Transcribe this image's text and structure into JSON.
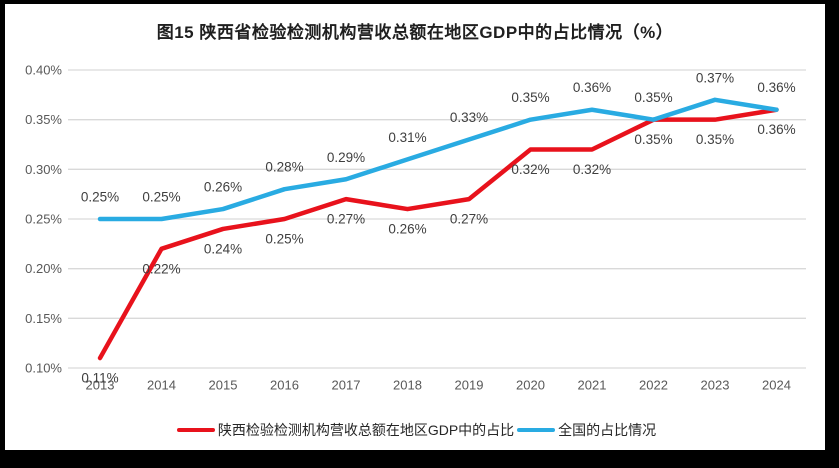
{
  "page": {
    "frame_color": "#000000",
    "canvas_color": "#ffffff"
  },
  "chart_data": {
    "type": "line",
    "title": "图15 陕西省检验检测机构营收总额在地区GDP中的占比情况（%）",
    "categories": [
      "2013",
      "2014",
      "2015",
      "2016",
      "2017",
      "2018",
      "2019",
      "2020",
      "2021",
      "2022",
      "2023",
      "2024"
    ],
    "series": [
      {
        "name": "陕西检验检测机构营收总额在地区GDP中的占比",
        "color": "#e8121c",
        "label_position": "below",
        "values": [
          0.11,
          0.22,
          0.24,
          0.25,
          0.27,
          0.26,
          0.27,
          0.32,
          0.32,
          0.35,
          0.35,
          0.36
        ]
      },
      {
        "name": "全国的占比情况",
        "color": "#29abe2",
        "label_position": "above",
        "values": [
          0.25,
          0.25,
          0.26,
          0.28,
          0.29,
          0.31,
          0.33,
          0.35,
          0.36,
          0.35,
          0.37,
          0.36
        ]
      }
    ],
    "y_axis": {
      "min": 0.1,
      "max": 0.4,
      "step": 0.05,
      "tick_labels": [
        "0.10%",
        "0.15%",
        "0.20%",
        "0.25%",
        "0.30%",
        "0.35%",
        "0.40%"
      ]
    },
    "grid": true,
    "legend_position": "bottom",
    "data_labels": true,
    "data_label_format": "0.00%",
    "colors": {
      "grid": "#d9d9d9",
      "axis_text": "#595959",
      "data_label_text": "#3f3f3f"
    }
  }
}
